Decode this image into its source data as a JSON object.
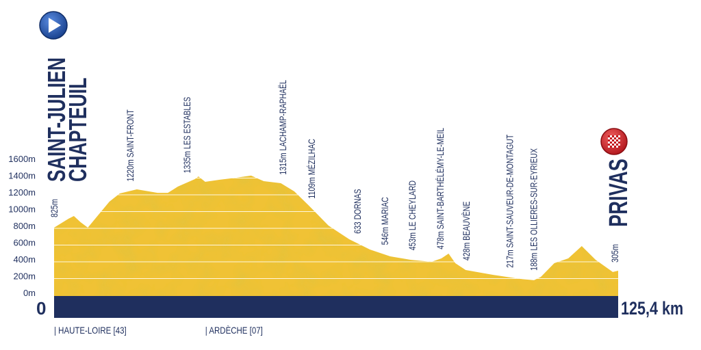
{
  "chart_data": {
    "type": "area",
    "title": "",
    "xlabel": "",
    "ylabel": "",
    "xlim": [
      0,
      125.4
    ],
    "ylim": [
      0,
      1600
    ],
    "grid": true,
    "y_ticks": [
      "0m",
      "200m",
      "400m",
      "600m",
      "800m",
      "1000m",
      "1200m",
      "1400m",
      "1600m"
    ],
    "y_tick_values": [
      0,
      200,
      400,
      600,
      800,
      1000,
      1200,
      1400,
      1600
    ],
    "profile": {
      "km": [
        0,
        3.2,
        4.4,
        5.9,
        7.5,
        10.0,
        12.3,
        14.6,
        18.4,
        23.0,
        25.3,
        27.5,
        31.3,
        32.1,
        33.6,
        36.7,
        40.5,
        43.8,
        46.6,
        50.4,
        53.4,
        56.5,
        61.0,
        65.6,
        70.2,
        74.7,
        79.3,
        83.9,
        86.1,
        87.7,
        89.2,
        91.5,
        97.5,
        103.6,
        106.7,
        108.2,
        111.2,
        114.3,
        117.3,
        120.4,
        124.2,
        125.4
      ],
      "elevation_m": [
        808,
        914,
        947,
        873,
        808,
        971,
        1118,
        1216,
        1265,
        1224,
        1224,
        1298,
        1388,
        1420,
        1355,
        1380,
        1404,
        1429,
        1363,
        1339,
        1241,
        1078,
        833,
        669,
        547,
        465,
        424,
        400,
        441,
        498,
        384,
        302,
        245,
        196,
        180,
        220,
        384,
        441,
        588,
        424,
        278,
        294
      ]
    },
    "start": {
      "name_line1": "SAINT-JULIEN",
      "name_line2": "CHAPTEUIL",
      "elevation": "825m",
      "km_label": "0"
    },
    "finish": {
      "name": "PRIVAS",
      "elevation": "305m",
      "km_label": "125,4 km"
    },
    "waypoints": [
      {
        "km": 16.9,
        "label": "1220m SAINT-FRONT"
      },
      {
        "km": 29.5,
        "label": "1335m LES ESTABLES"
      },
      {
        "km": 50.8,
        "label": "1315m LACHAMP-RAPHAËL"
      },
      {
        "km": 57.2,
        "label": "1109m MÉZILHAC"
      },
      {
        "km": 67.4,
        "label": "633 DORNAS"
      },
      {
        "km": 73.5,
        "label": "546m MARIAC"
      },
      {
        "km": 79.6,
        "label": "453m LE CHEYLARD"
      },
      {
        "km": 85.8,
        "label": "478m SAINT-BARTHÉLÉMY-LE-MEIL"
      },
      {
        "km": 91.6,
        "label": "428m BEAUVÈNE"
      },
      {
        "km": 101.3,
        "label": "217m SAINT-SAUVEUR-DE-MONTAGUT"
      },
      {
        "km": 106.6,
        "label": "188m LES OLLIERES-SUR-EYRIEUX"
      }
    ],
    "departments": [
      {
        "km": 0,
        "label": "| HAUTE-LOIRE [43]"
      },
      {
        "km": 33.6,
        "label": "| ARDÈCHE [07]"
      }
    ],
    "colors": {
      "terrain": "#f0c234",
      "terrain_shade": "#d9a920",
      "base_bar": "#1f2f5e",
      "text": "#1f2f5e",
      "start_icon": "#1f4fa0",
      "finish_icon": "#d61f26"
    },
    "icons": {
      "start": "play-icon",
      "finish": "checkered-flag-icon"
    }
  }
}
